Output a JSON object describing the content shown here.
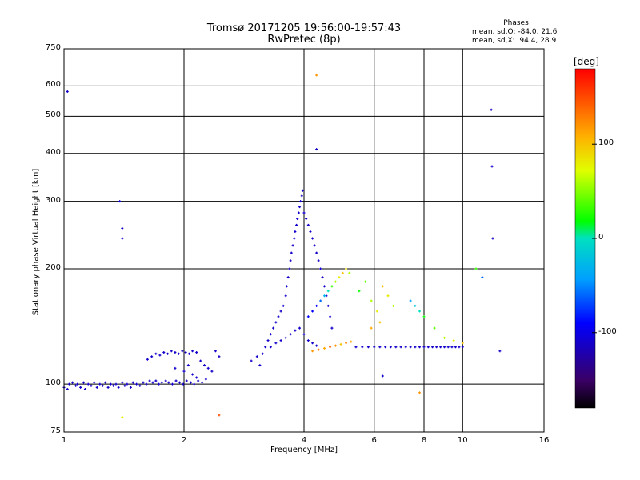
{
  "title_line1": "Tromsø 20171205 19:56:00-19:57:43",
  "title_line2": "RwPretec (8p)",
  "legend": {
    "title": "Phases",
    "line1": "mean, sd,O: -84.0, 21.6",
    "line2": "mean, sd,X:  94.4, 28.9"
  },
  "colorbar": {
    "unit": "[deg]",
    "ticks": [
      {
        "label": "100",
        "value": 100
      },
      {
        "label": "0",
        "value": 0
      },
      {
        "label": "-100",
        "value": -100
      }
    ],
    "range": [
      -180,
      180
    ]
  },
  "chart_data": {
    "type": "scatter",
    "xlabel": "Frequency [MHz]",
    "ylabel": "Stationary phase Virtual Height [km]",
    "x_scale": "log",
    "y_scale": "log",
    "xlim": [
      1,
      16
    ],
    "ylim": [
      75,
      750
    ],
    "x_ticks": [
      {
        "label": "1",
        "value": 1
      },
      {
        "label": "2",
        "value": 2
      },
      {
        "label": "4",
        "value": 4
      },
      {
        "label": "6",
        "value": 6
      },
      {
        "label": "8",
        "value": 8
      },
      {
        "label": "10",
        "value": 10
      },
      {
        "label": "16",
        "value": 16
      }
    ],
    "y_ticks": [
      {
        "label": "750",
        "value": 750
      },
      {
        "label": "600",
        "value": 600
      },
      {
        "label": "500",
        "value": 500
      },
      {
        "label": "400",
        "value": 400
      },
      {
        "label": "300",
        "value": 300
      },
      {
        "label": "200",
        "value": 200
      },
      {
        "label": "100",
        "value": 100
      },
      {
        "label": "75",
        "value": 75
      }
    ],
    "grid": true,
    "series": [
      {
        "color_by": "phase [deg]",
        "points": [
          [
            1.0,
            98,
            -110
          ],
          [
            1.02,
            97,
            -110
          ],
          [
            1.03,
            100,
            -110
          ],
          [
            1.05,
            101,
            -110
          ],
          [
            1.07,
            99,
            -110
          ],
          [
            1.08,
            100,
            -110
          ],
          [
            1.1,
            98,
            -110
          ],
          [
            1.12,
            101,
            -110
          ],
          [
            1.13,
            97,
            -110
          ],
          [
            1.15,
            100,
            -110
          ],
          [
            1.17,
            99,
            -110
          ],
          [
            1.19,
            101,
            -110
          ],
          [
            1.21,
            98,
            -110
          ],
          [
            1.23,
            100,
            -110
          ],
          [
            1.25,
            99,
            -110
          ],
          [
            1.27,
            101,
            -110
          ],
          [
            1.29,
            98,
            -110
          ],
          [
            1.31,
            100,
            -110
          ],
          [
            1.33,
            99,
            -110
          ],
          [
            1.35,
            100,
            -110
          ],
          [
            1.37,
            98,
            -110
          ],
          [
            1.4,
            101,
            -110
          ],
          [
            1.42,
            99,
            -110
          ],
          [
            1.44,
            100,
            -110
          ],
          [
            1.47,
            98,
            -110
          ],
          [
            1.49,
            101,
            -110
          ],
          [
            1.52,
            100,
            -110
          ],
          [
            1.55,
            99,
            -110
          ],
          [
            1.58,
            101,
            -110
          ],
          [
            1.61,
            100,
            -110
          ],
          [
            1.64,
            102,
            -110
          ],
          [
            1.67,
            101,
            -110
          ],
          [
            1.7,
            102,
            -110
          ],
          [
            1.73,
            100,
            -110
          ],
          [
            1.76,
            101,
            -110
          ],
          [
            1.8,
            102,
            -110
          ],
          [
            1.83,
            101,
            -110
          ],
          [
            1.87,
            100,
            -110
          ],
          [
            1.91,
            102,
            -110
          ],
          [
            1.95,
            101,
            -110
          ],
          [
            1.99,
            100,
            -110
          ],
          [
            2.03,
            102,
            -110
          ],
          [
            2.08,
            101,
            -110
          ],
          [
            2.12,
            100,
            -110
          ],
          [
            2.17,
            102,
            -110
          ],
          [
            2.22,
            101,
            -110
          ],
          [
            2.27,
            103,
            -110
          ],
          [
            1.62,
            116,
            -110
          ],
          [
            1.66,
            118,
            -110
          ],
          [
            1.7,
            120,
            -110
          ],
          [
            1.74,
            119,
            -110
          ],
          [
            1.78,
            121,
            -110
          ],
          [
            1.82,
            120,
            -110
          ],
          [
            1.86,
            122,
            -110
          ],
          [
            1.9,
            121,
            -110
          ],
          [
            1.94,
            120,
            -110
          ],
          [
            1.98,
            122,
            -110
          ],
          [
            2.02,
            121,
            -110
          ],
          [
            2.06,
            120,
            -110
          ],
          [
            2.1,
            122,
            -110
          ],
          [
            2.15,
            121,
            -110
          ],
          [
            2.2,
            115,
            -110
          ],
          [
            2.25,
            112,
            -110
          ],
          [
            2.3,
            110,
            -110
          ],
          [
            2.35,
            108,
            -110
          ],
          [
            2.4,
            122,
            -110
          ],
          [
            2.45,
            118,
            -110
          ],
          [
            1.9,
            110,
            -110
          ],
          [
            2.0,
            108,
            -110
          ],
          [
            2.05,
            112,
            -110
          ],
          [
            2.1,
            106,
            -110
          ],
          [
            2.15,
            104,
            -110
          ],
          [
            2.95,
            115,
            -110
          ],
          [
            3.05,
            118,
            -110
          ],
          [
            3.1,
            112,
            -110
          ],
          [
            3.15,
            120,
            -110
          ],
          [
            3.2,
            125,
            -110
          ],
          [
            3.25,
            130,
            -110
          ],
          [
            3.3,
            135,
            -110
          ],
          [
            3.35,
            140,
            -110
          ],
          [
            3.4,
            145,
            -110
          ],
          [
            3.45,
            150,
            -110
          ],
          [
            3.5,
            155,
            -110
          ],
          [
            3.55,
            160,
            -110
          ],
          [
            3.6,
            170,
            -110
          ],
          [
            3.62,
            180,
            -110
          ],
          [
            3.65,
            190,
            -110
          ],
          [
            3.68,
            200,
            -110
          ],
          [
            3.7,
            210,
            -110
          ],
          [
            3.72,
            220,
            -110
          ],
          [
            3.75,
            230,
            -110
          ],
          [
            3.78,
            240,
            -110
          ],
          [
            3.8,
            250,
            -110
          ],
          [
            3.83,
            260,
            -110
          ],
          [
            3.85,
            270,
            -110
          ],
          [
            3.88,
            280,
            -110
          ],
          [
            3.9,
            290,
            -110
          ],
          [
            3.92,
            300,
            -110
          ],
          [
            3.95,
            310,
            -110
          ],
          [
            3.97,
            320,
            -110
          ],
          [
            3.3,
            125,
            -110
          ],
          [
            3.4,
            128,
            -110
          ],
          [
            3.5,
            130,
            -110
          ],
          [
            3.6,
            132,
            -110
          ],
          [
            3.7,
            135,
            -110
          ],
          [
            3.8,
            138,
            -110
          ],
          [
            3.9,
            140,
            -110
          ],
          [
            4.0,
            135,
            -110
          ],
          [
            4.1,
            130,
            -110
          ],
          [
            4.2,
            128,
            -110
          ],
          [
            4.3,
            126,
            -110
          ],
          [
            4.0,
            280,
            -110
          ],
          [
            4.05,
            270,
            -110
          ],
          [
            4.1,
            260,
            -110
          ],
          [
            4.15,
            250,
            -110
          ],
          [
            4.2,
            240,
            -110
          ],
          [
            4.25,
            230,
            -110
          ],
          [
            4.3,
            220,
            -110
          ],
          [
            4.35,
            210,
            -110
          ],
          [
            4.4,
            200,
            -110
          ],
          [
            4.45,
            190,
            -110
          ],
          [
            4.5,
            180,
            -110
          ],
          [
            4.55,
            170,
            -110
          ],
          [
            4.6,
            160,
            -110
          ],
          [
            4.65,
            150,
            -110
          ],
          [
            4.7,
            140,
            -110
          ],
          [
            4.1,
            150,
            -90
          ],
          [
            4.2,
            155,
            -90
          ],
          [
            4.3,
            160,
            -90
          ],
          [
            4.4,
            165,
            -60
          ],
          [
            4.5,
            170,
            -30
          ],
          [
            4.6,
            175,
            0
          ],
          [
            4.7,
            180,
            30
          ],
          [
            4.8,
            185,
            60
          ],
          [
            4.9,
            190,
            80
          ],
          [
            5.0,
            195,
            100
          ],
          [
            5.1,
            200,
            90
          ],
          [
            5.2,
            195,
            60
          ],
          [
            4.2,
            122,
            120
          ],
          [
            4.35,
            123,
            130
          ],
          [
            4.5,
            124,
            110
          ],
          [
            4.65,
            125,
            140
          ],
          [
            4.8,
            126,
            120
          ],
          [
            4.95,
            127,
            100
          ],
          [
            5.1,
            128,
            130
          ],
          [
            5.25,
            129,
            110
          ],
          [
            5.4,
            125,
            -110
          ],
          [
            5.6,
            125,
            -110
          ],
          [
            5.8,
            125,
            -110
          ],
          [
            6.0,
            125,
            -110
          ],
          [
            6.2,
            125,
            -110
          ],
          [
            6.4,
            125,
            -110
          ],
          [
            6.6,
            125,
            -110
          ],
          [
            6.8,
            125,
            -110
          ],
          [
            7.0,
            125,
            -110
          ],
          [
            7.2,
            125,
            -110
          ],
          [
            7.4,
            125,
            -110
          ],
          [
            7.6,
            125,
            -110
          ],
          [
            7.8,
            125,
            -110
          ],
          [
            8.0,
            125,
            -110
          ],
          [
            8.2,
            125,
            -110
          ],
          [
            8.4,
            125,
            -110
          ],
          [
            8.6,
            125,
            -110
          ],
          [
            8.8,
            125,
            -110
          ],
          [
            9.0,
            125,
            -110
          ],
          [
            9.2,
            125,
            -110
          ],
          [
            9.4,
            125,
            -110
          ],
          [
            9.6,
            125,
            -110
          ],
          [
            9.8,
            125,
            -110
          ],
          [
            10.0,
            125,
            -110
          ],
          [
            6.3,
            180,
            100
          ],
          [
            6.5,
            170,
            80
          ],
          [
            6.7,
            160,
            60
          ],
          [
            7.4,
            165,
            -40
          ],
          [
            7.6,
            160,
            -20
          ],
          [
            7.8,
            155,
            0
          ],
          [
            8.0,
            150,
            20
          ],
          [
            8.5,
            140,
            40
          ],
          [
            9.0,
            132,
            60
          ],
          [
            9.5,
            130,
            80
          ],
          [
            10.0,
            128,
            100
          ],
          [
            5.5,
            175,
            20
          ],
          [
            5.7,
            185,
            40
          ],
          [
            5.9,
            165,
            60
          ],
          [
            6.1,
            155,
            80
          ],
          [
            6.2,
            145,
            100
          ],
          [
            1.02,
            580,
            -110
          ],
          [
            1.38,
            300,
            -110
          ],
          [
            1.4,
            255,
            -110
          ],
          [
            1.4,
            240,
            -110
          ],
          [
            1.4,
            82,
            80
          ],
          [
            4.3,
            640,
            120
          ],
          [
            4.3,
            410,
            -110
          ],
          [
            10.8,
            200,
            30
          ],
          [
            11.2,
            190,
            -60
          ],
          [
            11.8,
            520,
            -110
          ],
          [
            11.85,
            370,
            -110
          ],
          [
            11.9,
            240,
            -110
          ],
          [
            12.4,
            122,
            -110
          ],
          [
            7.8,
            95,
            120
          ],
          [
            2.45,
            83,
            150
          ],
          [
            5.9,
            140,
            110
          ],
          [
            6.3,
            105,
            -110
          ]
        ]
      }
    ]
  }
}
